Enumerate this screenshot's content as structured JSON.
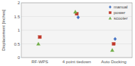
{
  "chart_data": {
    "type": "scatter",
    "y_label": "Displacement [Inches]",
    "categories": [
      "RF-WPS",
      "4 point tiedown",
      "Auto Docking"
    ],
    "series": [
      {
        "name": "manual",
        "color": "#4472C4",
        "marker": "diamond",
        "values": [
          null,
          1.47,
          0.68
        ]
      },
      {
        "name": "power",
        "color": "#C0392B",
        "marker": "square",
        "values": [
          0.75,
          1.6,
          0.5
        ]
      },
      {
        "name": "scooter",
        "color": "#70AD47",
        "marker": "triangle",
        "values": [
          0.5,
          1.67,
          0.27
        ]
      }
    ],
    "ylim": [
      0,
      2.0
    ],
    "yticks": [
      0,
      0.5,
      1,
      1.5,
      2
    ],
    "grid": true,
    "legend": "upper right"
  }
}
